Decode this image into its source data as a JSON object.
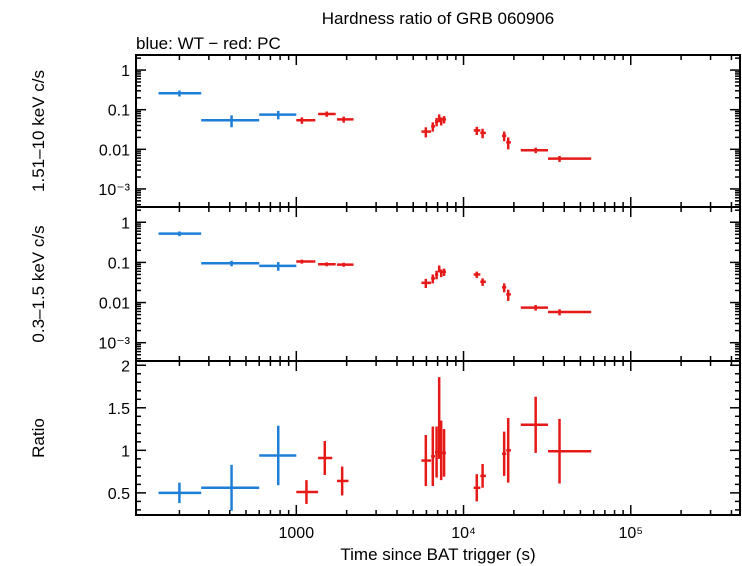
{
  "chart_data": {
    "type": "scatter",
    "title": "Hardness ratio of GRB 060906",
    "subtitle": "blue: WT − red: PC",
    "xlabel": "Time since BAT trigger (s)",
    "x_scale": "log",
    "xlim": [
      110,
      450000
    ],
    "x_tick_labels": [
      "1000",
      "10⁴",
      "10⁵"
    ],
    "colors": {
      "WT": "#1e7fd8",
      "PC": "#e61919"
    },
    "panels": [
      {
        "name": "hard",
        "ylabel": "1.51–10 keV c/s",
        "y_scale": "log",
        "ylim": [
          0.00035,
          2.4
        ],
        "y_tick_labels": [
          "1",
          "0.1",
          "0.01",
          "10⁻³"
        ],
        "series": [
          {
            "name": "WT",
            "points": [
              [
                200,
                150,
                270,
                0.26,
                0.045
              ],
              [
                410,
                270,
                600,
                0.054,
                0.018
              ],
              [
                780,
                600,
                1000,
                0.075,
                0.018
              ]
            ]
          },
          {
            "name": "PC",
            "points": [
              [
                1080,
                1000,
                1300,
                0.054,
                0.01
              ],
              [
                1520,
                1350,
                1720,
                0.078,
                0.012
              ],
              [
                1920,
                1750,
                2200,
                0.057,
                0.01
              ],
              [
                5950,
                5600,
                6400,
                0.028,
                0.008
              ],
              [
                6550,
                6400,
                6750,
                0.038,
                0.01
              ],
              [
                6900,
                6750,
                7050,
                0.05,
                0.012
              ],
              [
                7150,
                7050,
                7250,
                0.062,
                0.014
              ],
              [
                7350,
                7250,
                7450,
                0.052,
                0.012
              ],
              [
                7650,
                7450,
                7850,
                0.057,
                0.012
              ],
              [
                12000,
                11500,
                12600,
                0.03,
                0.007
              ],
              [
                13000,
                12600,
                13600,
                0.026,
                0.007
              ],
              [
                17500,
                17000,
                18000,
                0.022,
                0.006
              ],
              [
                18500,
                18000,
                19200,
                0.015,
                0.005
              ],
              [
                27000,
                22000,
                32000,
                0.0095,
                0.0015
              ],
              [
                37500,
                32000,
                58000,
                0.0058,
                0.001
              ]
            ]
          }
        ]
      },
      {
        "name": "soft",
        "ylabel": "0.3–1.5 keV c/s",
        "y_scale": "log",
        "ylim": [
          0.00035,
          2.4
        ],
        "y_tick_labels": [
          "1",
          "0.1",
          "0.01",
          "10⁻³"
        ],
        "series": [
          {
            "name": "WT",
            "points": [
              [
                200,
                150,
                270,
                0.52,
                0.07
              ],
              [
                410,
                270,
                600,
                0.095,
                0.015
              ],
              [
                780,
                600,
                1000,
                0.082,
                0.02
              ]
            ]
          },
          {
            "name": "PC",
            "points": [
              [
                1080,
                1000,
                1300,
                0.105,
                0.012
              ],
              [
                1520,
                1350,
                1720,
                0.09,
                0.01
              ],
              [
                1920,
                1750,
                2200,
                0.088,
                0.01
              ],
              [
                5950,
                5600,
                6400,
                0.031,
                0.008
              ],
              [
                6550,
                6400,
                6750,
                0.04,
                0.01
              ],
              [
                6900,
                6750,
                7050,
                0.05,
                0.012
              ],
              [
                7150,
                7050,
                7250,
                0.07,
                0.014
              ],
              [
                7350,
                7250,
                7450,
                0.055,
                0.012
              ],
              [
                7650,
                7450,
                7850,
                0.058,
                0.012
              ],
              [
                12000,
                11500,
                12600,
                0.05,
                0.009
              ],
              [
                13000,
                12600,
                13600,
                0.033,
                0.007
              ],
              [
                17500,
                17000,
                18000,
                0.024,
                0.006
              ],
              [
                18500,
                18000,
                19200,
                0.016,
                0.005
              ],
              [
                27000,
                22000,
                32000,
                0.0075,
                0.0012
              ],
              [
                37500,
                32000,
                58000,
                0.0058,
                0.001
              ]
            ]
          }
        ]
      },
      {
        "name": "ratio",
        "ylabel": "Ratio",
        "y_scale": "linear",
        "ylim": [
          0.24,
          2.05
        ],
        "y_ticks": [
          0.5,
          1,
          1.5,
          2
        ],
        "y_tick_labels": [
          "0.5",
          "1",
          "1.5",
          "2"
        ],
        "series": [
          {
            "name": "WT",
            "points": [
              [
                200,
                150,
                270,
                0.5,
                0.12
              ],
              [
                410,
                270,
                600,
                0.56,
                0.27
              ],
              [
                780,
                600,
                1000,
                0.94,
                0.35
              ]
            ]
          },
          {
            "name": "PC",
            "points": [
              [
                1150,
                1000,
                1350,
                0.51,
                0.14
              ],
              [
                1480,
                1350,
                1640,
                0.91,
                0.2
              ],
              [
                1880,
                1750,
                2050,
                0.64,
                0.17
              ],
              [
                5950,
                5600,
                6400,
                0.88,
                0.3
              ],
              [
                6550,
                6400,
                6750,
                0.93,
                0.35
              ],
              [
                6900,
                6750,
                7050,
                0.98,
                0.3
              ],
              [
                7150,
                7050,
                7250,
                1.38,
                0.48
              ],
              [
                7350,
                7250,
                7450,
                1.0,
                0.35
              ],
              [
                7650,
                7450,
                7850,
                0.97,
                0.28
              ],
              [
                12000,
                11500,
                12600,
                0.56,
                0.16
              ],
              [
                13000,
                12600,
                13600,
                0.7,
                0.14
              ],
              [
                17500,
                17000,
                18000,
                0.96,
                0.26
              ],
              [
                18500,
                18000,
                19200,
                1.0,
                0.38
              ],
              [
                27000,
                22000,
                32000,
                1.3,
                0.33
              ],
              [
                37500,
                32000,
                58000,
                0.99,
                0.38
              ]
            ]
          }
        ]
      }
    ]
  }
}
